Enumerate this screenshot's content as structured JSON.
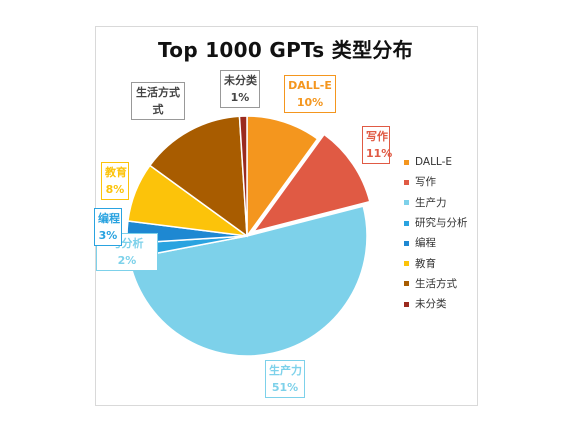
{
  "chart_data": {
    "type": "pie",
    "title": "Top 1000 GPTs 类型分布",
    "slices": [
      {
        "label": "DALL-E",
        "value": 10,
        "value_label": "10%",
        "color": "#f4961e"
      },
      {
        "label": "写作",
        "value": 11,
        "value_label": "11%",
        "color": "#e05a44"
      },
      {
        "label": "生产力",
        "value": 51,
        "value_label": "51%",
        "color": "#7dd1ea"
      },
      {
        "label": "研究与分析",
        "value": 2,
        "value_label": "2%",
        "color": "#2aa3e0"
      },
      {
        "label": "编程",
        "value": 3,
        "value_label": "3%",
        "color": "#1e88d2"
      },
      {
        "label": "教育",
        "value": 8,
        "value_label": "8%",
        "color": "#fcc30a"
      },
      {
        "label": "生活方式",
        "value": 14,
        "value_label": "",
        "color": "#a85c00"
      },
      {
        "label": "未分类",
        "value": 1,
        "value_label": "1%",
        "color": "#9b2a1e"
      }
    ],
    "legend": {
      "position": "right",
      "entries": [
        "DALL-E",
        "写作",
        "生产力",
        "研究与分析",
        "编程",
        "教育",
        "生活方式",
        "未分类"
      ]
    },
    "callouts": [
      {
        "name": "DALL-E",
        "text": "DALL-E",
        "pct": "10%"
      },
      {
        "name": "写作",
        "text": "写作",
        "pct": "11%"
      },
      {
        "name": "生产力",
        "text": "生产力",
        "pct": "51%"
      },
      {
        "name": "研究与分析",
        "text": "与分析",
        "pct": "2%"
      },
      {
        "name": "编程",
        "text": "编程",
        "pct": "3%"
      },
      {
        "name": "教育",
        "text": "教育",
        "pct": "8%"
      },
      {
        "name": "生活方式",
        "text": "生活方式",
        "pct": "式"
      },
      {
        "name": "未分类",
        "text": "未分类",
        "pct": "1%"
      }
    ]
  }
}
